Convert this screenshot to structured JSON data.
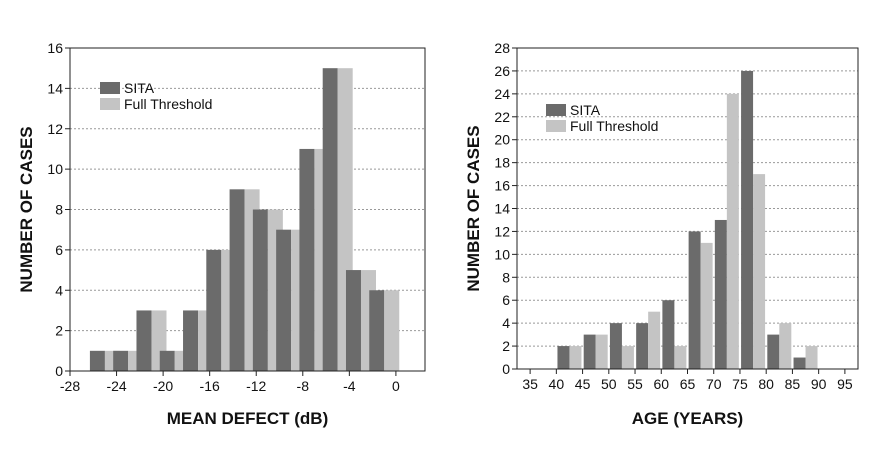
{
  "chart_data": [
    {
      "type": "bar",
      "xlabel": "MEAN DEFECT (dB)",
      "ylabel": "NUMBER OF CASES",
      "xlim": [
        -28,
        2.5
      ],
      "ylim": [
        0,
        16
      ],
      "xticks": [
        -28,
        -24,
        -20,
        -16,
        -12,
        -8,
        -4,
        0
      ],
      "yticks": [
        0,
        2,
        4,
        6,
        8,
        10,
        12,
        14,
        16
      ],
      "grid": true,
      "legend": "upper-left",
      "x": [
        -25,
        -23,
        -21,
        -19,
        -17,
        -15,
        -13,
        -11,
        -9,
        -7,
        -5,
        -3,
        -1
      ],
      "series": [
        {
          "name": "SITA",
          "color": "#6b6b6b",
          "values": [
            1,
            1,
            3,
            1,
            3,
            6,
            9,
            8,
            7,
            11,
            15,
            5,
            4
          ]
        },
        {
          "name": "Full Threshold",
          "color": "#c4c4c4",
          "values": [
            1,
            1,
            3,
            1,
            3,
            6,
            9,
            8,
            7,
            11,
            15,
            5,
            4
          ]
        }
      ]
    },
    {
      "type": "bar",
      "xlabel": "AGE (YEARS)",
      "ylabel": "NUMBER OF CASES",
      "xlim": [
        32.5,
        97.5
      ],
      "ylim": [
        0,
        28
      ],
      "xticks": [
        35,
        40,
        45,
        50,
        55,
        60,
        65,
        70,
        75,
        80,
        85,
        90,
        95
      ],
      "yticks": [
        0,
        2,
        4,
        6,
        8,
        10,
        12,
        14,
        16,
        18,
        20,
        22,
        24,
        26,
        28
      ],
      "grid": true,
      "legend": "upper-left",
      "x": [
        42.5,
        47.5,
        52.5,
        57.5,
        62.5,
        67.5,
        72.5,
        77.5,
        82.5,
        87.5
      ],
      "series": [
        {
          "name": "SITA",
          "color": "#6b6b6b",
          "values": [
            2,
            3,
            4,
            4,
            6,
            12,
            13,
            26,
            3,
            1
          ]
        },
        {
          "name": "Full Threshold",
          "color": "#c4c4c4",
          "values": [
            2,
            3,
            2,
            5,
            2,
            11,
            24,
            17,
            4,
            2
          ]
        }
      ]
    }
  ]
}
